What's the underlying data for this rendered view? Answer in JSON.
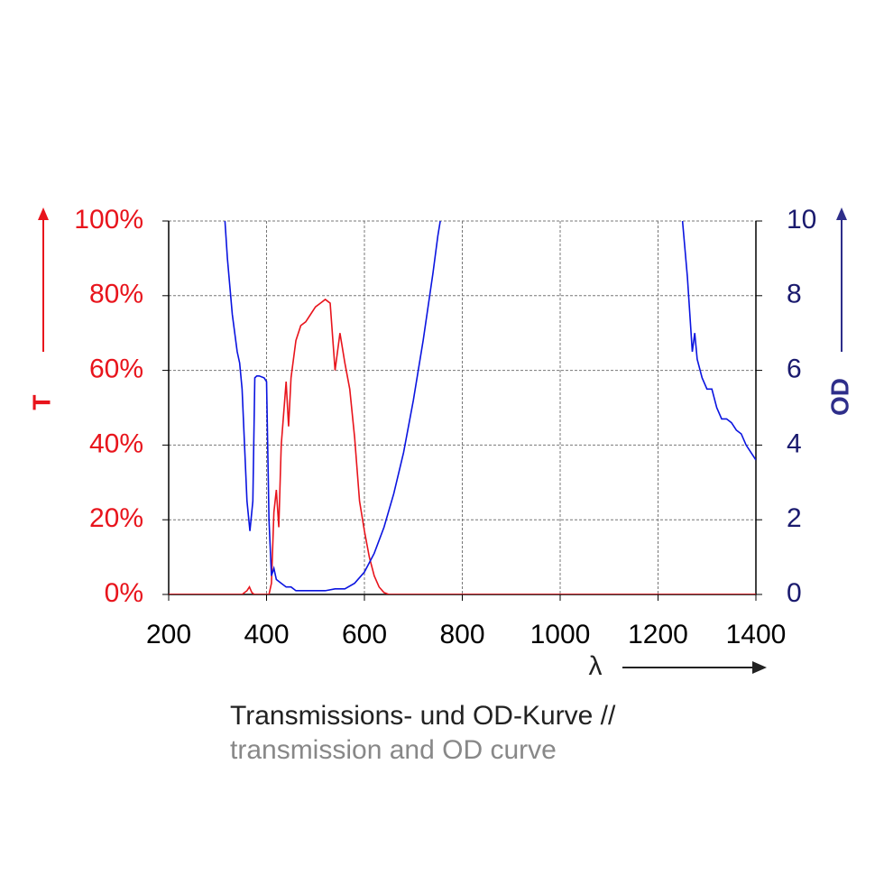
{
  "chart_data": {
    "type": "line",
    "x_label": "λ",
    "y_label": "T",
    "y2_label": "OD",
    "caption": [
      "Transmissions- und OD-Kurve //",
      "transmission and OD curve"
    ],
    "xlim": [
      200,
      1400
    ],
    "xticks": [
      200,
      400,
      600,
      800,
      1000,
      1200,
      1400
    ],
    "ylim": [
      0,
      100
    ],
    "yticks": [
      {
        "value": 0,
        "label": "0%"
      },
      {
        "value": 20,
        "label": "20%"
      },
      {
        "value": 40,
        "label": "40%"
      },
      {
        "value": 60,
        "label": "60%"
      },
      {
        "value": 80,
        "label": "80%"
      },
      {
        "value": 100,
        "label": "100%"
      }
    ],
    "y2lim": [
      0,
      10
    ],
    "y2ticks": [
      0,
      2,
      4,
      6,
      8,
      10
    ],
    "grid": true,
    "series": [
      {
        "name": "T",
        "color": "#e8141c",
        "axis": "y",
        "x": [
          200,
          350,
          360,
          365,
          370,
          375,
          405,
          410,
          415,
          420,
          425,
          430,
          440,
          445,
          450,
          460,
          470,
          480,
          490,
          500,
          510,
          520,
          530,
          540,
          550,
          560,
          570,
          580,
          590,
          600,
          610,
          620,
          630,
          640,
          650,
          1400
        ],
        "values": [
          0,
          0,
          1,
          2,
          0.5,
          0,
          0,
          3,
          22,
          28,
          18,
          40,
          57,
          45,
          58,
          68,
          72,
          73,
          75,
          77,
          78,
          79,
          78,
          60,
          70,
          62,
          55,
          42,
          25,
          17,
          10,
          5,
          2,
          0.5,
          0,
          0
        ]
      },
      {
        "name": "OD",
        "color": "#0a14e0",
        "axis": "y2",
        "x": [
          315,
          320,
          330,
          340,
          345,
          350,
          355,
          360,
          366,
          372,
          376,
          380,
          385,
          395,
          400,
          405,
          410,
          415,
          420,
          430,
          440,
          450,
          460,
          480,
          500,
          520,
          540,
          560,
          580,
          600,
          620,
          640,
          660,
          680,
          700,
          720,
          740,
          750,
          755,
          1000,
          1250,
          1260,
          1270,
          1275,
          1280,
          1290,
          1300,
          1310,
          1320,
          1330,
          1340,
          1350,
          1360,
          1370,
          1380,
          1390,
          1400
        ],
        "values": [
          10,
          9,
          7.5,
          6.5,
          6.2,
          5.5,
          4,
          2.5,
          1.7,
          2.5,
          5.8,
          5.85,
          5.85,
          5.8,
          5.7,
          2,
          0.5,
          0.7,
          0.4,
          0.3,
          0.2,
          0.2,
          0.1,
          0.1,
          0.1,
          0.1,
          0.15,
          0.15,
          0.3,
          0.6,
          1.1,
          1.8,
          2.7,
          3.8,
          5.2,
          6.8,
          8.6,
          9.6,
          10,
          null,
          10,
          8.5,
          6.5,
          7,
          6.3,
          5.8,
          5.5,
          5.5,
          5,
          4.7,
          4.7,
          4.6,
          4.4,
          4.3,
          4,
          3.8,
          3.6
        ]
      }
    ]
  }
}
